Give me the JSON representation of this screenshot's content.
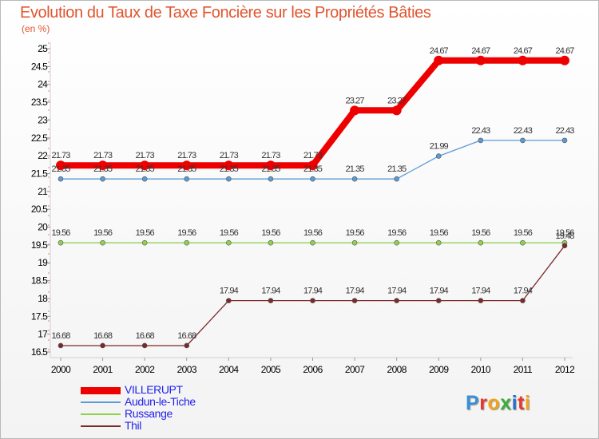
{
  "header": {
    "title": "Evolution du Taux de Taxe Foncière sur les Propriétés Bâties",
    "unit": "(en %)"
  },
  "chart_data": {
    "type": "line",
    "title": "Evolution du Taux de Taxe Foncière sur les Propriétés Bâties",
    "ylabel": "(en %)",
    "xlabel": "",
    "x": [
      "2000",
      "2001",
      "2002",
      "2003",
      "2004",
      "2005",
      "2006",
      "2007",
      "2008",
      "2009",
      "2010",
      "2011",
      "2012"
    ],
    "ylim": [
      16.5,
      25
    ],
    "yticks": [
      "16.5",
      "17",
      "17.5",
      "18",
      "18.5",
      "19",
      "19.5",
      "20",
      "20.5",
      "21",
      "21.5",
      "22",
      "22.5",
      "23",
      "23.5",
      "24",
      "24.5",
      "25"
    ],
    "grid": false,
    "legend": "bottom-left",
    "series": [
      {
        "name": "VILLERUPT",
        "color": "#ee0000",
        "values": [
          21.73,
          21.73,
          21.73,
          21.73,
          21.73,
          21.73,
          21.73,
          23.27,
          23.27,
          24.67,
          24.67,
          24.67,
          24.67
        ],
        "labels": [
          "21.73",
          "21.73",
          "21.73",
          "21.73",
          "21.73",
          "21.73",
          "21.73",
          "23.27",
          "23.27",
          "24.67",
          "24.67",
          "24.67",
          "24.67"
        ]
      },
      {
        "name": "Audun-le-Tiche",
        "color": "#5b9bd5",
        "values": [
          21.35,
          21.35,
          21.35,
          21.35,
          21.35,
          21.35,
          21.35,
          21.35,
          21.35,
          21.99,
          22.43,
          22.43,
          22.43
        ],
        "labels": [
          "21.35",
          "21.35",
          "21.35",
          "21.35",
          "21.35",
          "21.35",
          "21.35",
          "21.35",
          "21.35",
          "21.99",
          "22.43",
          "22.43",
          "22.43"
        ]
      },
      {
        "name": "Russange",
        "color": "#8fd14f",
        "values": [
          19.56,
          19.56,
          19.56,
          19.56,
          19.56,
          19.56,
          19.56,
          19.56,
          19.56,
          19.56,
          19.56,
          19.56,
          19.56
        ],
        "labels": [
          "19.56",
          "19.56",
          "19.56",
          "19.56",
          "19.56",
          "19.56",
          "19.56",
          "19.56",
          "19.56",
          "19.56",
          "19.56",
          "19.56",
          "19.56"
        ]
      },
      {
        "name": "Thil",
        "color": "#7b2a2a",
        "values": [
          16.68,
          16.68,
          16.68,
          16.68,
          17.94,
          17.94,
          17.94,
          17.94,
          17.94,
          17.94,
          17.94,
          17.94,
          19.48
        ],
        "labels": [
          "16.68",
          "16.68",
          "16.68",
          "16.68",
          "17.94",
          "17.94",
          "17.94",
          "17.94",
          "17.94",
          "17.94",
          "17.94",
          "17.94",
          "19.48"
        ]
      }
    ]
  },
  "logo": {
    "letters": [
      "P",
      "r",
      "o",
      "x",
      "i",
      "t",
      "i"
    ],
    "colors": [
      "#3a8fd8",
      "#e6392b",
      "#f2a31b",
      "#3cae3a",
      "#2a6fc9",
      "#e6392b",
      "#f2a31b"
    ]
  }
}
